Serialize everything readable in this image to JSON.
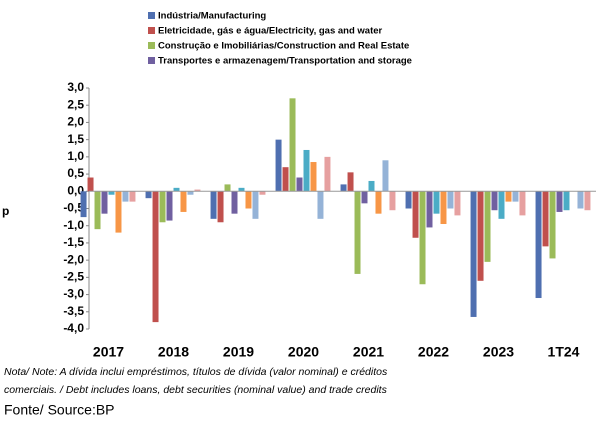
{
  "chart_data": {
    "type": "bar",
    "y_label": "p",
    "categories": [
      "2017",
      "2018",
      "2019",
      "2020",
      "2021",
      "2022",
      "2023",
      "1T24"
    ],
    "series": [
      {
        "name": "Indústria/Manufacturing",
        "color": "#4f6fb0",
        "values": [
          -0.75,
          -0.2,
          -0.8,
          1.5,
          0.2,
          -0.5,
          -3.65,
          -3.1
        ]
      },
      {
        "name": "Eletricidade, gás e água/Electricity, gas and water",
        "color": "#c0504d",
        "values": [
          0.4,
          -3.8,
          -0.9,
          0.7,
          0.55,
          -1.35,
          -2.6,
          -1.6
        ]
      },
      {
        "name": "Construção e Imobiliárias/Construction and Real Estate",
        "color": "#9bbb59",
        "values": [
          -1.1,
          -0.9,
          0.2,
          2.7,
          -2.4,
          -2.7,
          -2.05,
          -1.95
        ]
      },
      {
        "name": "Transportes e armazenagem/Transportation and storage",
        "color": "#7060a0",
        "values": [
          -0.65,
          -0.85,
          -0.65,
          0.4,
          -0.35,
          -1.05,
          -0.55,
          -0.6
        ]
      },
      {
        "color": "#4bacc6",
        "values": [
          -0.1,
          0.1,
          0.1,
          1.2,
          0.3,
          -0.65,
          -0.8,
          -0.55
        ]
      },
      {
        "color": "#f79646",
        "values": [
          -1.2,
          -0.6,
          -0.5,
          0.85,
          -0.65,
          -0.95,
          -0.3,
          0
        ]
      },
      {
        "color": "#95b3d7",
        "values": [
          -0.3,
          -0.1,
          -0.8,
          -0.8,
          0.9,
          -0.5,
          -0.3,
          -0.5
        ]
      },
      {
        "color": "#e6a0a0",
        "values": [
          -0.3,
          0.05,
          -0.1,
          1.0,
          -0.55,
          -0.7,
          -0.7,
          -0.55
        ]
      }
    ],
    "ylim": [
      -4,
      3
    ],
    "yticks": [
      {
        "value": 3,
        "label": "3,0"
      },
      {
        "value": 2.5,
        "label": "2,5"
      },
      {
        "value": 2,
        "label": "2,0"
      },
      {
        "value": 1.5,
        "label": "1,5"
      },
      {
        "value": 1,
        "label": "1,0"
      },
      {
        "value": 0.5,
        "label": "0,5"
      },
      {
        "value": 0,
        "label": "0,0"
      },
      {
        "value": -0.5,
        "label": "-0,5"
      },
      {
        "value": -1,
        "label": "-1,0"
      },
      {
        "value": -1.5,
        "label": "-1,5"
      },
      {
        "value": -2,
        "label": "-2,0"
      },
      {
        "value": -2.5,
        "label": "-2,5"
      },
      {
        "value": -3,
        "label": "-3,0"
      },
      {
        "value": -3.5,
        "label": "-3,5"
      },
      {
        "value": -4,
        "label": "-4,0"
      }
    ],
    "notes": [
      "Nota/ Note: A dívida inclui empréstimos, títulos de dívida (valor nominal) e créditos",
      "comerciais. / Debt includes loans, debt securities (nominal value) and trade credits"
    ],
    "source": "Fonte/ Source:BP"
  }
}
